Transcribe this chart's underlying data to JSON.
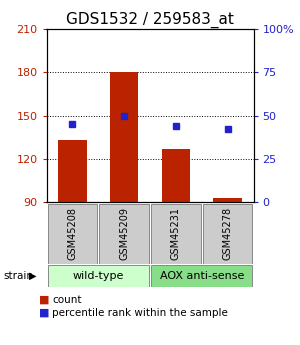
{
  "title": "GDS1532 / 259583_at",
  "samples": [
    "GSM45208",
    "GSM45209",
    "GSM45231",
    "GSM45278"
  ],
  "count_values": [
    133,
    180,
    127,
    93
  ],
  "percentile_values": [
    45,
    50,
    44,
    42
  ],
  "ylim_left": [
    90,
    210
  ],
  "ylim_right": [
    0,
    100
  ],
  "yticks_left": [
    90,
    120,
    150,
    180,
    210
  ],
  "yticks_right": [
    0,
    25,
    50,
    75,
    100
  ],
  "ytick_labels_right": [
    "0",
    "25",
    "50",
    "75",
    "100%"
  ],
  "bar_color": "#bb2200",
  "dot_color": "#2222cc",
  "bar_width": 0.55,
  "title_fontsize": 11,
  "tick_fontsize": 8,
  "label_fontsize": 7.5,
  "sample_label_fontsize": 7,
  "group_label_fontsize": 8,
  "legend_fontsize": 7.5,
  "group_defs": [
    {
      "label": "wild-type",
      "start": 0,
      "end": 1,
      "color": "#ccffcc"
    },
    {
      "label": "AOX anti-sense",
      "start": 2,
      "end": 3,
      "color": "#88dd88"
    }
  ]
}
